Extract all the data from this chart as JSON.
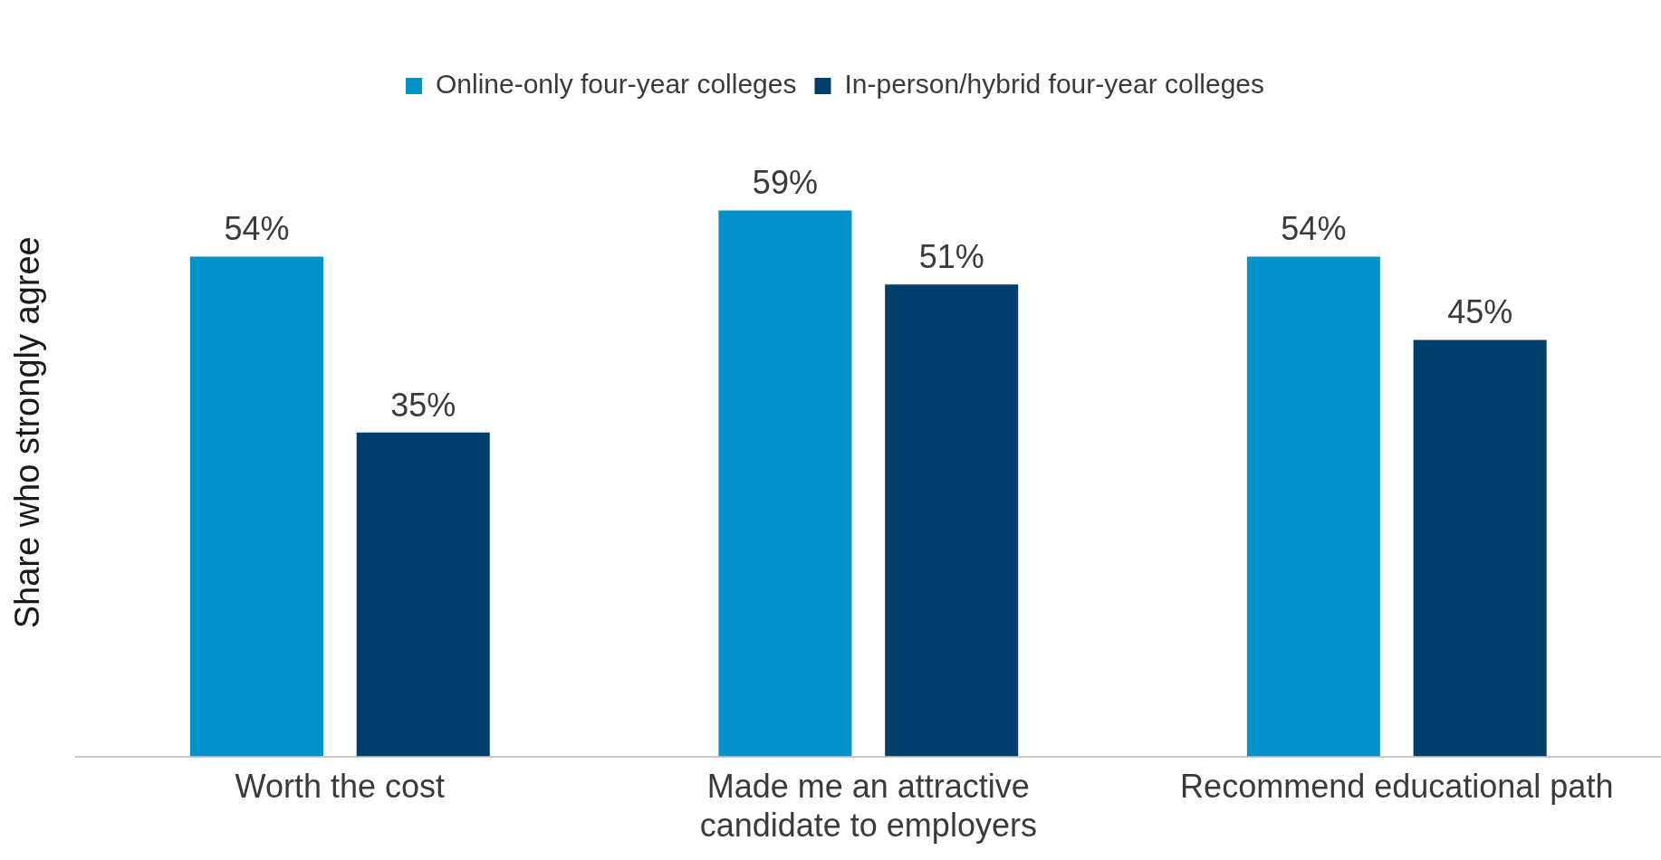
{
  "chart_data": {
    "type": "bar",
    "ylabel": "Share who strongly agree",
    "categories": [
      "Worth the cost",
      "Made me an attractive candidate to employers",
      "Recommend educational path"
    ],
    "series": [
      {
        "name": "Online-only four-year colleges",
        "color": "#0092c8",
        "values": [
          54,
          59,
          54
        ],
        "value_labels": [
          "54%",
          "59%",
          "54%"
        ]
      },
      {
        "name": "In-person/hybrid four-year colleges",
        "color": "#003f6b",
        "values": [
          35,
          51,
          45
        ],
        "value_labels": [
          "35%",
          "51%",
          "45%"
        ]
      }
    ],
    "tick_labels": "x",
    "grid": false,
    "legend": "top"
  }
}
